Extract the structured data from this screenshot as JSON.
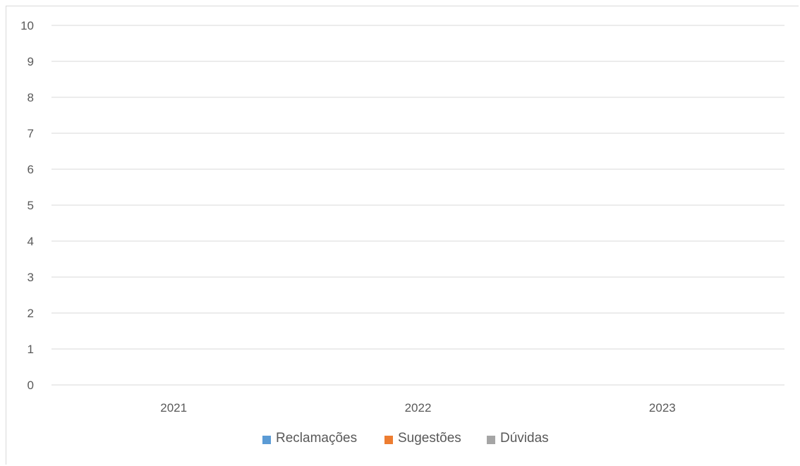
{
  "chart_data": {
    "type": "bar",
    "categories": [
      "2021",
      "2022",
      "2023"
    ],
    "series": [
      {
        "name": "Reclamações",
        "color": "#5b9bd5",
        "values": [
          0,
          0,
          0
        ]
      },
      {
        "name": "Sugestões",
        "color": "#ed7d31",
        "values": [
          0,
          0,
          0
        ]
      },
      {
        "name": "Dúvidas",
        "color": "#a5a5a5",
        "values": [
          0,
          0,
          0
        ]
      }
    ],
    "yticks": [
      "0",
      "1",
      "2",
      "3",
      "4",
      "5",
      "6",
      "7",
      "8",
      "9",
      "10"
    ],
    "ylim": [
      0,
      10
    ],
    "grid": true,
    "legend_position": "bottom"
  }
}
